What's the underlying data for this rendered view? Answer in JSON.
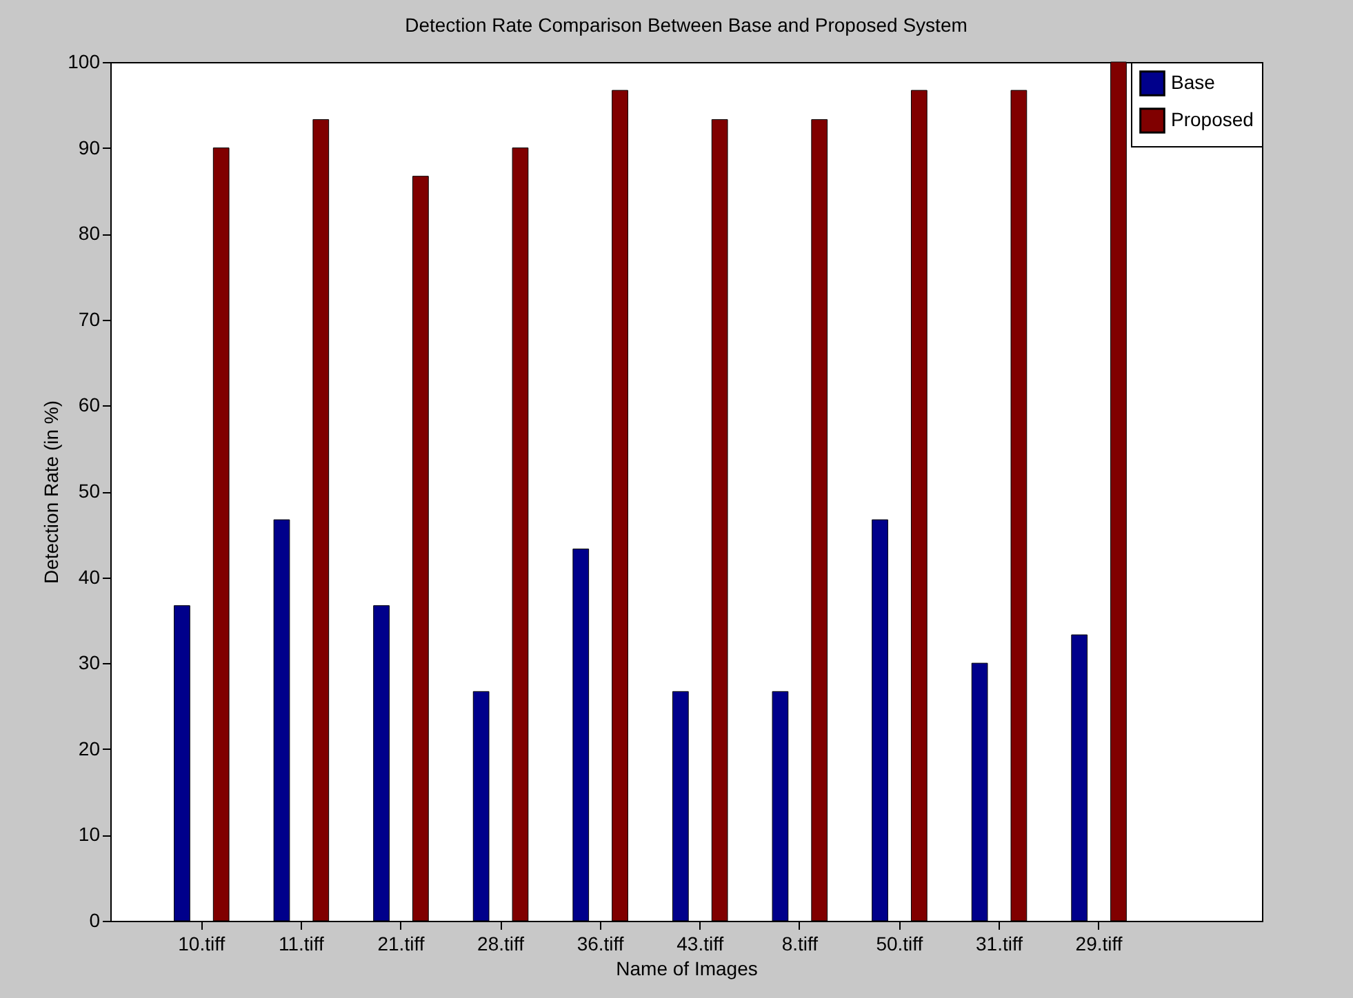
{
  "chart_data": {
    "type": "bar",
    "title": "Detection Rate Comparison Between Base and Proposed System",
    "xlabel": "Name of Images",
    "ylabel": "Detection Rate (in %)",
    "categories": [
      "10.tiff",
      "11.tiff",
      "21.tiff",
      "28.tiff",
      "36.tiff",
      "43.tiff",
      "8.tiff",
      "50.tiff",
      "31.tiff",
      "29.tiff"
    ],
    "series": [
      {
        "name": "Base",
        "color": "#00008b",
        "values": [
          36.7,
          46.7,
          36.7,
          26.7,
          43.3,
          26.7,
          26.7,
          46.7,
          30,
          33.3
        ]
      },
      {
        "name": "Proposed",
        "color": "#800000",
        "values": [
          90,
          93.3,
          86.7,
          90,
          96.7,
          93.3,
          93.3,
          96.7,
          96.7,
          100
        ]
      }
    ],
    "ylim": [
      0,
      100
    ],
    "yticks": [
      0,
      10,
      20,
      30,
      40,
      50,
      60,
      70,
      80,
      90,
      100
    ],
    "legend": "top right"
  }
}
